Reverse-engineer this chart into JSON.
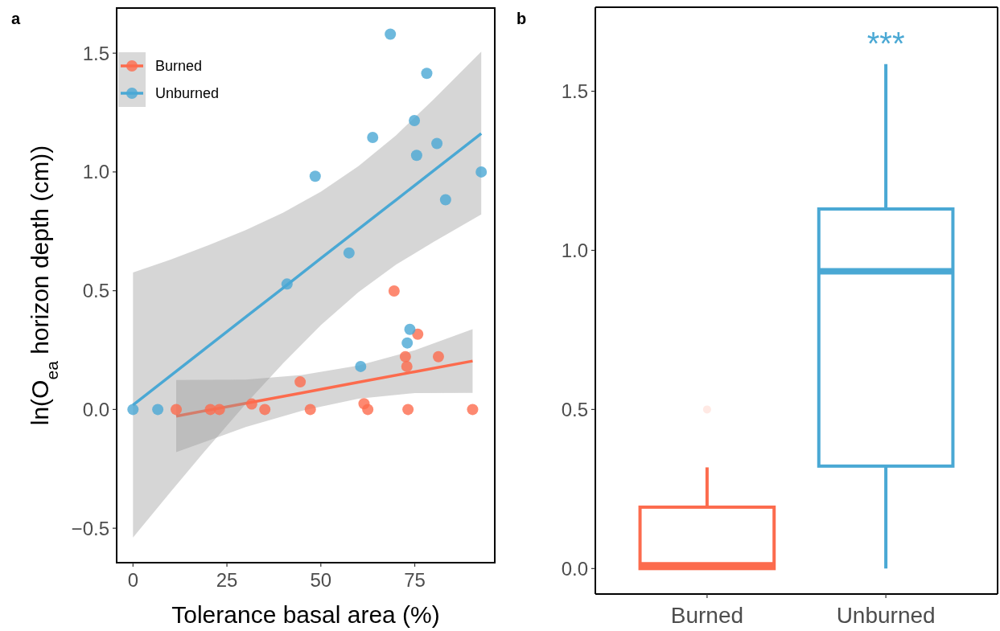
{
  "chart_data": [
    {
      "type": "scatter",
      "title": "a",
      "xlabel": "Tolerance basal area (%)",
      "ylabel": "ln(O$_{ea}$ horizon depth (cm))",
      "xlim": [
        -4.35,
        96.3
      ],
      "xticks": [
        0,
        25,
        50,
        75
      ],
      "ylim": [
        -0.645,
        1.69
      ],
      "yticks": [
        {
          "value": -0.5,
          "label": "−0.5"
        },
        {
          "value": 0,
          "label": "0.0"
        },
        {
          "value": 0.5,
          "label": "0.5"
        },
        {
          "value": 1,
          "label": "1.0"
        },
        {
          "value": 1.5,
          "label": "1.5"
        }
      ],
      "grid": false,
      "legend": "top left",
      "series": [
        {
          "name": "Burned",
          "color": "#fc6b4d",
          "x": [
            69.5,
            75.8,
            72.5,
            81.3,
            72.9,
            44.5,
            31.6,
            61.5,
            11.5,
            20.6,
            23.0,
            35.1,
            47.2,
            62.5,
            73.2,
            90.4
          ],
          "values": [
            0.499,
            0.317,
            0.222,
            0.222,
            0.181,
            0.116,
            0.023,
            0.024,
            0,
            0,
            0,
            0,
            0,
            0,
            0,
            0
          ]
        },
        {
          "name": "Unburned",
          "color": "#4aa8d4",
          "x": [
            68.5,
            78.2,
            74.9,
            63.8,
            80.9,
            75.5,
            48.5,
            92.7,
            83.2,
            57.5,
            41.0,
            73.7,
            73.0,
            60.6,
            0,
            6.6
          ],
          "values": [
            1.58,
            1.415,
            1.216,
            1.145,
            1.12,
            1.07,
            0.982,
            1.0,
            0.883,
            0.659,
            0.528,
            0.337,
            0.28,
            0.181,
            0,
            0
          ]
        },
        {
          "type": "line",
          "color": "#fc6b4d",
          "x": [
            11.5,
            30,
            45,
            60,
            75,
            90.4
          ],
          "values": [
            -0.028,
            0.026,
            0.07,
            0.115,
            0.159,
            0.204
          ],
          "lower": [
            -0.18,
            -0.074,
            -0.005,
            0.045,
            0.069,
            0.07
          ],
          "upper": [
            0.124,
            0.126,
            0.145,
            0.185,
            0.249,
            0.338
          ]
        },
        {
          "type": "line",
          "color": "#4aa8d4",
          "x": [
            0,
            10,
            20,
            30,
            40,
            50,
            60,
            70,
            80,
            92.7
          ],
          "values": [
            0.019,
            0.142,
            0.266,
            0.389,
            0.512,
            0.636,
            0.759,
            0.882,
            1.005,
            1.162
          ],
          "lower": [
            -0.539,
            -0.347,
            -0.159,
            0.023,
            0.195,
            0.355,
            0.494,
            0.61,
            0.705,
            0.821
          ],
          "upper": [
            0.577,
            0.631,
            0.691,
            0.755,
            0.829,
            0.917,
            1.024,
            1.154,
            1.305,
            1.506
          ]
        }
      ]
    },
    {
      "type": "box",
      "title": "b",
      "categories": [
        "Burned",
        "Unburned"
      ],
      "colors": [
        "#fc6b4d",
        "#4aa8d4"
      ],
      "ylim": [
        -0.08,
        1.764
      ],
      "yticks": [
        {
          "value": 0,
          "label": "0.0"
        },
        {
          "value": 0.5,
          "label": "0.5"
        },
        {
          "value": 1,
          "label": "1.0"
        },
        {
          "value": 1.5,
          "label": "1.5"
        }
      ],
      "grid": false,
      "boxes": [
        {
          "low": 0,
          "q1": 0,
          "median": 0.01,
          "q3": 0.193,
          "high": 0.318,
          "outliers": [
            0.5
          ]
        },
        {
          "low": 0,
          "q1": 0.322,
          "median": 0.934,
          "q3": 1.13,
          "high": 1.585
        }
      ],
      "annotations": [
        "***"
      ]
    }
  ]
}
